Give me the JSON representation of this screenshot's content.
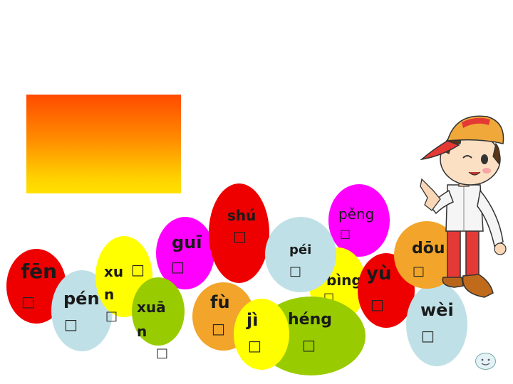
{
  "slide": {
    "words": {
      "fen": {
        "pinyin": "fēn",
        "hanzi": "□"
      },
      "pen": {
        "pinyin": "pén",
        "hanzi": "□"
      },
      "xun": {
        "pinyin_line1": "xu",
        "pinyin_line2": "n",
        "hanzi": "□",
        "tone_box": "□"
      },
      "xuan": {
        "pinyin_line1": "xuā",
        "pinyin_line2": "n",
        "hanzi": "□"
      },
      "gui": {
        "pinyin": "guī",
        "hanzi": "□"
      },
      "shu": {
        "pinyin": "shú",
        "hanzi": "□"
      },
      "fu": {
        "pinyin": "fù",
        "hanzi": "□"
      },
      "ji": {
        "pinyin": "jì",
        "hanzi": "□"
      },
      "pei": {
        "pinyin": "péi",
        "hanzi": "□"
      },
      "heng": {
        "pinyin": "héng",
        "hanzi": "□"
      },
      "bing": {
        "pinyin": "bìng",
        "hanzi": "□"
      },
      "peng": {
        "pinyin": "pěng",
        "hanzi": "□"
      },
      "yu": {
        "pinyin": "yù",
        "hanzi": "□"
      },
      "dou": {
        "pinyin": "dōu",
        "hanzi": "□"
      },
      "wei": {
        "pinyin": "wèi",
        "hanzi": "□"
      }
    }
  },
  "colors": {
    "red": "#ee0000",
    "light_blue": "#bfe0e6",
    "yellow": "#ffff00",
    "green": "#99cc00",
    "magenta": "#ff00ff",
    "orange": "#f2a52a",
    "panel_gradient": [
      "#ff4a00",
      "#ffe100"
    ]
  },
  "icons": {
    "character": "cartoon-boy-cap-icon",
    "smiley": "smiley-face-icon"
  }
}
